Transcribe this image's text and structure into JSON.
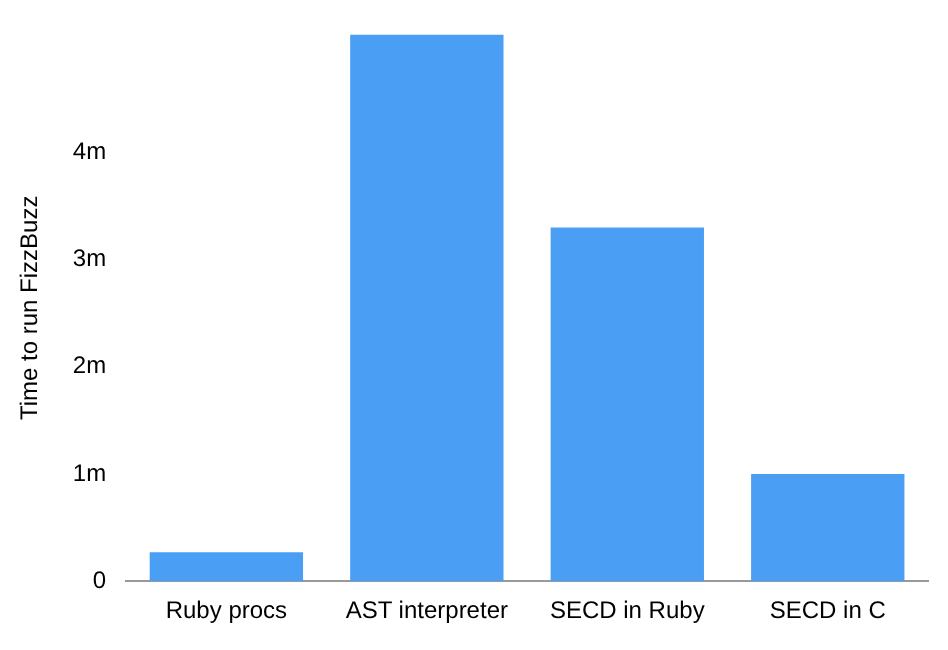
{
  "chart_data": {
    "type": "bar",
    "ylabel": "Time to run FizzBuzz",
    "categories": [
      "Ruby procs",
      "AST interpreter",
      "SECD in Ruby",
      "SECD in C"
    ],
    "values": [
      0.27,
      5.1,
      3.3,
      1.0
    ],
    "color": "#4a9ff5",
    "ylim": [
      0,
      5.1
    ],
    "yticks": [
      {
        "value": 0,
        "label": "0"
      },
      {
        "value": 1,
        "label": "1m"
      },
      {
        "value": 2,
        "label": "2m"
      },
      {
        "value": 3,
        "label": "3m"
      },
      {
        "value": 4,
        "label": "4m"
      }
    ],
    "grid": false
  }
}
